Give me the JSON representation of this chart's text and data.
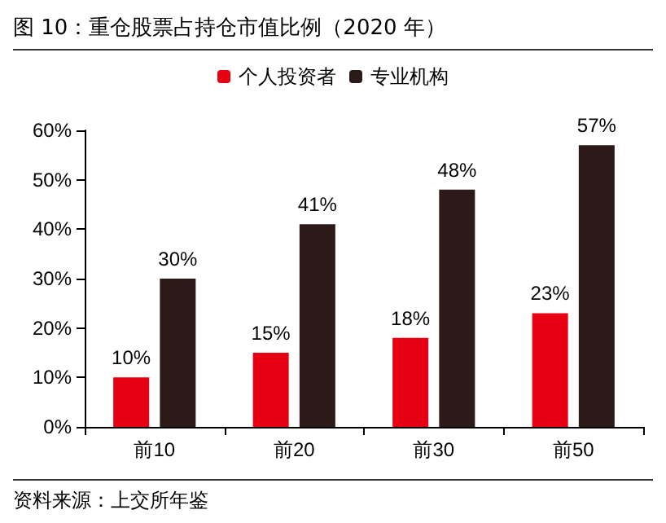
{
  "chart_data": {
    "type": "bar",
    "title": "图 10：重仓股票占持仓市值比例（2020 年）",
    "annotations": [
      "资料来源：上交所年鉴"
    ],
    "categories": [
      "前10",
      "前20",
      "前30",
      "前50"
    ],
    "series": [
      {
        "name": "个人投资者",
        "color": "#e60012",
        "values": [
          10,
          15,
          18,
          23
        ],
        "value_labels": [
          "10%",
          "15%",
          "18%",
          "23%"
        ]
      },
      {
        "name": "专业机构",
        "color": "#2b1a17",
        "values": [
          30,
          41,
          48,
          57
        ],
        "value_labels": [
          "30%",
          "41%",
          "48%",
          "57%"
        ]
      }
    ],
    "ylim": [
      0,
      60
    ],
    "yticks": [
      {
        "value": 0,
        "label": "0%"
      },
      {
        "value": 10,
        "label": "10%"
      },
      {
        "value": 20,
        "label": "20%"
      },
      {
        "value": 30,
        "label": "30%"
      },
      {
        "value": 40,
        "label": "40%"
      },
      {
        "value": 50,
        "label": "50%"
      },
      {
        "value": 60,
        "label": "60%"
      }
    ],
    "grid": false,
    "legend": "top"
  }
}
